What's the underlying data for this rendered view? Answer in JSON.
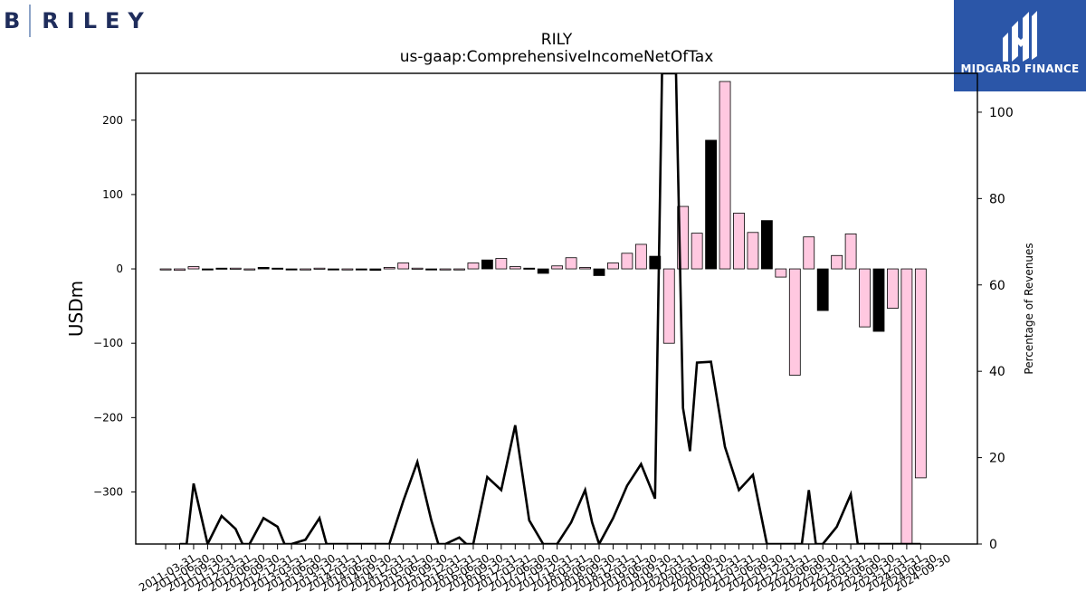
{
  "branding": {
    "left_logo_letter": "B",
    "left_logo_text": "RILEY",
    "right_logo_text": "MIDGARD FINANCE",
    "brand_navy": "#1f2d5c",
    "brand_blue": "#2b56a8"
  },
  "chart_data": {
    "type": "bar",
    "title": "RILY",
    "subtitle": "us-gaap:ComprehensiveIncomeNetOfTax",
    "ylabel": "USDm",
    "y2label": "Percentage of Revenues",
    "ylim": [
      -370,
      263
    ],
    "y2lim": [
      0,
      109
    ],
    "yticks": [
      200,
      100,
      0,
      -100,
      -200,
      -300
    ],
    "y2ticks": [
      0,
      20,
      40,
      60,
      80,
      100
    ],
    "ytick_labels": [
      "200",
      "100",
      "0",
      "−100",
      "−200",
      "−300"
    ],
    "y2tick_labels": [
      "0",
      "20",
      "40",
      "60",
      "80",
      "100"
    ],
    "grid": false,
    "bar_colors": {
      "default": "#ffc8e0",
      "highlight": "#000000",
      "edge": "#000000"
    },
    "categories": [
      "2011-03-31",
      "2011-06-30",
      "2011-09-30",
      "2011-12-31",
      "2012-03-31",
      "2012-06-30",
      "2012-09-30",
      "2012-12-31",
      "2013-03-31",
      "2013-06-30",
      "2013-09-30",
      "2013-12-31",
      "2014-03-31",
      "2014-06-30",
      "2014-09-30",
      "2014-12-31",
      "2015-03-31",
      "2015-06-30",
      "2015-09-30",
      "2015-12-31",
      "2016-03-31",
      "2016-06-30",
      "2016-09-30",
      "2016-12-31",
      "2017-03-31",
      "2017-06-30",
      "2017-09-30",
      "2017-12-31",
      "2018-03-31",
      "2018-06-30",
      "2018-09-30",
      "2018-12-31",
      "2019-03-31",
      "2019-06-30",
      "2019-09-30",
      "2019-12-31",
      "2020-03-31",
      "2020-06-30",
      "2020-09-30",
      "2020-12-31",
      "2021-03-31",
      "2021-06-30",
      "2021-09-30",
      "2021-12-31",
      "2022-03-31",
      "2022-06-30",
      "2022-09-30",
      "2022-12-31",
      "2023-03-31",
      "2023-06-30",
      "2023-09-30",
      "2023-12-31",
      "2024-03-31",
      "2024-06-30",
      "2024-09-30"
    ],
    "xtick_labels": [
      "2011-03-31",
      "2011-06-30",
      "2011-09-30",
      "2011-12-31",
      "2012-03-31",
      "2012-06-30",
      "2012-09-30",
      "2012-12-31",
      "2013-03-31",
      "2013-06-30",
      "2013-09-30",
      "2013-12-31",
      "2014-03-31",
      "2014-06-30",
      "2014-09-30",
      "2014-12-31",
      "2015-03-31",
      "2015-06-30",
      "2015-09-30",
      "2015-12-31",
      "2016-03-31",
      "2016-06-30",
      "2016-09-30",
      "2016-12-31",
      "2017-03-31",
      "2017-06-30",
      "2017-09-30",
      "2017-12-31",
      "2018-03-31",
      "2018-06-30",
      "2018-09-30",
      "2018-12-31",
      "2019-03-31",
      "2019-06-30",
      "2019-09-30",
      "2019-12-31",
      "2020-03-31",
      "2020-06-30",
      "2020-09-30",
      "2020-12-31",
      "2021-03-31",
      "2021-06-30",
      "2021-09-30",
      "2021-12-31",
      "2022-03-31",
      "2022-06-30",
      "2022-09-30",
      "2022-12-31",
      "2023-03-31",
      "2023-06-30",
      "2023-09-30",
      "2023-12-31",
      "2024-03-31",
      "2024-06-30",
      "2024-09-30"
    ],
    "bar_positions": [
      -1,
      0,
      1,
      2,
      3,
      4,
      5,
      6,
      7,
      8,
      9,
      10,
      11,
      12,
      13,
      14,
      15,
      16,
      17,
      18,
      19,
      20,
      21,
      22,
      23,
      24,
      25,
      26,
      27,
      28,
      29,
      30,
      31,
      32,
      33,
      34,
      35,
      36,
      37,
      38,
      39,
      40,
      41,
      42,
      43,
      44,
      45,
      46,
      47,
      48,
      49,
      50,
      51,
      52,
      53
    ],
    "series": [
      {
        "type": "bar",
        "values": [
          0,
          -2,
          3,
          -1,
          1,
          1,
          -1,
          2,
          1,
          -1,
          -1,
          1,
          -1,
          -1,
          -1,
          -2,
          2,
          8,
          1,
          -1,
          0,
          0,
          8,
          12,
          14,
          3,
          1,
          -6,
          4,
          15,
          2,
          -9,
          8,
          21,
          33,
          17,
          -100,
          84,
          48,
          173,
          252,
          75,
          49,
          65,
          -11,
          -143,
          43,
          -56,
          18,
          47,
          -78,
          -84,
          -53,
          -370,
          -281
        ],
        "highlight": [
          false,
          false,
          false,
          true,
          true,
          false,
          false,
          true,
          true,
          true,
          false,
          false,
          true,
          false,
          true,
          true,
          false,
          false,
          false,
          true,
          false,
          false,
          false,
          true,
          false,
          false,
          true,
          true,
          false,
          false,
          false,
          true,
          false,
          false,
          false,
          true,
          false,
          false,
          false,
          true,
          false,
          false,
          false,
          true,
          false,
          false,
          false,
          true,
          false,
          false,
          false,
          true,
          false,
          false,
          false
        ]
      },
      {
        "type": "line",
        "color": "#000000",
        "x": [
          0,
          0.5,
          1,
          2,
          3,
          4,
          4.5,
          5,
          6,
          7,
          7.5,
          8,
          9,
          10,
          10.5,
          11,
          12,
          13,
          14,
          15,
          16,
          17,
          18,
          18.5,
          19,
          20,
          20.5,
          21,
          22,
          23,
          24,
          25,
          26,
          26.5,
          27,
          28,
          29,
          29.5,
          30,
          31,
          32,
          33,
          34,
          34.5,
          35,
          35.5,
          36,
          36.5,
          37,
          38,
          39,
          40,
          41,
          42,
          43,
          44,
          44.5,
          45,
          45.5,
          46,
          47,
          48,
          48.5,
          49,
          50,
          51,
          52,
          53
        ],
        "y": [
          0,
          0,
          14,
          0,
          6.5,
          3.5,
          0,
          0,
          6,
          4,
          0,
          0,
          1,
          6,
          0,
          0,
          0,
          0,
          0,
          0,
          10,
          19,
          5.5,
          0,
          0,
          1.5,
          0,
          0,
          15.5,
          12.5,
          27.5,
          5.5,
          0,
          0,
          0,
          5,
          12.5,
          5,
          0,
          6,
          13.5,
          18.5,
          10.5,
          109,
          109,
          109,
          31.5,
          21.5,
          42,
          42.2,
          22.5,
          12.5,
          16,
          0,
          0,
          0,
          0,
          12.5,
          0,
          0,
          4,
          11.5,
          0,
          0,
          0,
          0,
          0,
          0
        ]
      }
    ]
  }
}
